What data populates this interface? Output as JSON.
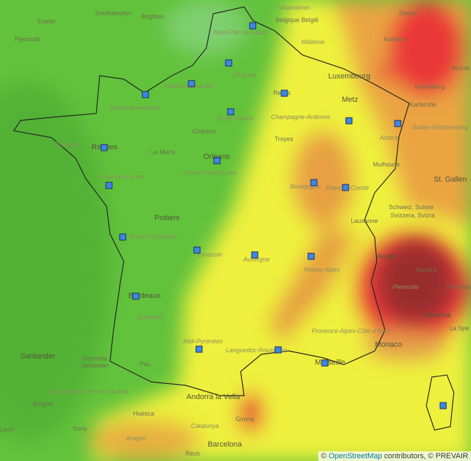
{
  "labels": [
    "Southampton",
    "Brighton",
    "Exeter",
    "Plymouth",
    "Vlaanderen",
    "Belgique België",
    "Wallonie",
    "Siegen",
    "Koblenz",
    "Luxembourg",
    "Nord-Pas-de-Calais",
    "Picardie",
    "Haute-Normandie",
    "Basse-Normandie",
    "Reims",
    "Metz",
    "Heidelberg",
    "Karlsruhe",
    "Würzb",
    "Île-de-France",
    "Champagne-Ardenne",
    "Chartres",
    "Baden-Württemberg",
    "Bretagne",
    "Rennes",
    "Le Mans",
    "Troyes",
    "Orléans",
    "Centre-Val de Loire",
    "Alsace",
    "Mulhouse",
    "St. Gallen",
    "Pays de la Loire",
    "Bourgogne",
    "Franche-Comté",
    "Schweiz, Suisse",
    "Svizzera, Svizra",
    "Poitiers",
    "Lausanne",
    "Poitou-Charentes",
    "Limousin",
    "Auvergne",
    "Aosta",
    "Rhône-Alpes",
    "Novara",
    "Piemonte",
    "Piacenza",
    "Bordeaux",
    "Genova",
    "Aquitaine",
    "La Spe",
    "Midi-Pyrénées",
    "Provence-Alpes-Côte d'Azur",
    "Monaco",
    "Languedoc-Roussillon",
    "Marseille",
    "Santander",
    "Donostia",
    "Sebastián",
    "Pau",
    "Comunidad Foral de Navarra",
    "Andorra la Vella",
    "Burgos",
    "Huesca",
    "Girona",
    "León",
    "Soria",
    "Catalunya",
    "Aragón",
    "Barcelona",
    "Reus"
  ],
  "attribution": {
    "prefix": "©",
    "link": "OpenStreetMap",
    "suffix": "contributors, © PREVAIR"
  }
}
